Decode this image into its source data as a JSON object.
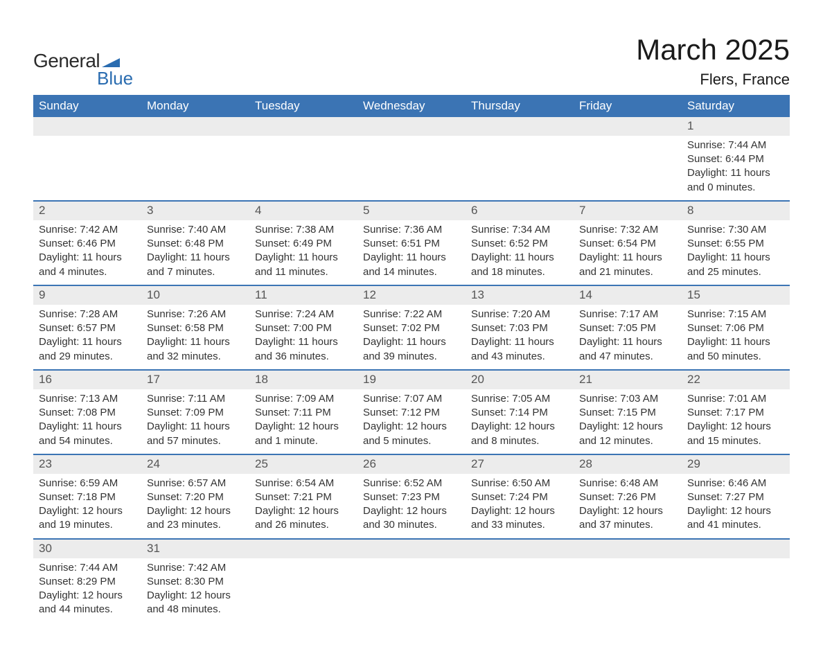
{
  "logo": {
    "text_general": "General",
    "text_blue": "Blue",
    "accent_color": "#2a6cb0",
    "text_color": "#2b2b2b"
  },
  "title": "March 2025",
  "location": "Flers, France",
  "colors": {
    "header_bg": "#3b74b4",
    "header_text": "#ffffff",
    "daynum_bg": "#ececec",
    "row_border": "#3b74b4",
    "body_text": "#333333",
    "daynum_text": "#555555"
  },
  "day_headers": [
    "Sunday",
    "Monday",
    "Tuesday",
    "Wednesday",
    "Thursday",
    "Friday",
    "Saturday"
  ],
  "weeks": [
    {
      "nums": [
        "",
        "",
        "",
        "",
        "",
        "",
        "1"
      ],
      "cells": [
        "",
        "",
        "",
        "",
        "",
        "",
        "Sunrise: 7:44 AM\nSunset: 6:44 PM\nDaylight: 11 hours and 0 minutes."
      ]
    },
    {
      "nums": [
        "2",
        "3",
        "4",
        "5",
        "6",
        "7",
        "8"
      ],
      "cells": [
        "Sunrise: 7:42 AM\nSunset: 6:46 PM\nDaylight: 11 hours and 4 minutes.",
        "Sunrise: 7:40 AM\nSunset: 6:48 PM\nDaylight: 11 hours and 7 minutes.",
        "Sunrise: 7:38 AM\nSunset: 6:49 PM\nDaylight: 11 hours and 11 minutes.",
        "Sunrise: 7:36 AM\nSunset: 6:51 PM\nDaylight: 11 hours and 14 minutes.",
        "Sunrise: 7:34 AM\nSunset: 6:52 PM\nDaylight: 11 hours and 18 minutes.",
        "Sunrise: 7:32 AM\nSunset: 6:54 PM\nDaylight: 11 hours and 21 minutes.",
        "Sunrise: 7:30 AM\nSunset: 6:55 PM\nDaylight: 11 hours and 25 minutes."
      ]
    },
    {
      "nums": [
        "9",
        "10",
        "11",
        "12",
        "13",
        "14",
        "15"
      ],
      "cells": [
        "Sunrise: 7:28 AM\nSunset: 6:57 PM\nDaylight: 11 hours and 29 minutes.",
        "Sunrise: 7:26 AM\nSunset: 6:58 PM\nDaylight: 11 hours and 32 minutes.",
        "Sunrise: 7:24 AM\nSunset: 7:00 PM\nDaylight: 11 hours and 36 minutes.",
        "Sunrise: 7:22 AM\nSunset: 7:02 PM\nDaylight: 11 hours and 39 minutes.",
        "Sunrise: 7:20 AM\nSunset: 7:03 PM\nDaylight: 11 hours and 43 minutes.",
        "Sunrise: 7:17 AM\nSunset: 7:05 PM\nDaylight: 11 hours and 47 minutes.",
        "Sunrise: 7:15 AM\nSunset: 7:06 PM\nDaylight: 11 hours and 50 minutes."
      ]
    },
    {
      "nums": [
        "16",
        "17",
        "18",
        "19",
        "20",
        "21",
        "22"
      ],
      "cells": [
        "Sunrise: 7:13 AM\nSunset: 7:08 PM\nDaylight: 11 hours and 54 minutes.",
        "Sunrise: 7:11 AM\nSunset: 7:09 PM\nDaylight: 11 hours and 57 minutes.",
        "Sunrise: 7:09 AM\nSunset: 7:11 PM\nDaylight: 12 hours and 1 minute.",
        "Sunrise: 7:07 AM\nSunset: 7:12 PM\nDaylight: 12 hours and 5 minutes.",
        "Sunrise: 7:05 AM\nSunset: 7:14 PM\nDaylight: 12 hours and 8 minutes.",
        "Sunrise: 7:03 AM\nSunset: 7:15 PM\nDaylight: 12 hours and 12 minutes.",
        "Sunrise: 7:01 AM\nSunset: 7:17 PM\nDaylight: 12 hours and 15 minutes."
      ]
    },
    {
      "nums": [
        "23",
        "24",
        "25",
        "26",
        "27",
        "28",
        "29"
      ],
      "cells": [
        "Sunrise: 6:59 AM\nSunset: 7:18 PM\nDaylight: 12 hours and 19 minutes.",
        "Sunrise: 6:57 AM\nSunset: 7:20 PM\nDaylight: 12 hours and 23 minutes.",
        "Sunrise: 6:54 AM\nSunset: 7:21 PM\nDaylight: 12 hours and 26 minutes.",
        "Sunrise: 6:52 AM\nSunset: 7:23 PM\nDaylight: 12 hours and 30 minutes.",
        "Sunrise: 6:50 AM\nSunset: 7:24 PM\nDaylight: 12 hours and 33 minutes.",
        "Sunrise: 6:48 AM\nSunset: 7:26 PM\nDaylight: 12 hours and 37 minutes.",
        "Sunrise: 6:46 AM\nSunset: 7:27 PM\nDaylight: 12 hours and 41 minutes."
      ]
    },
    {
      "nums": [
        "30",
        "31",
        "",
        "",
        "",
        "",
        ""
      ],
      "cells": [
        "Sunrise: 7:44 AM\nSunset: 8:29 PM\nDaylight: 12 hours and 44 minutes.",
        "Sunrise: 7:42 AM\nSunset: 8:30 PM\nDaylight: 12 hours and 48 minutes.",
        "",
        "",
        "",
        "",
        ""
      ]
    }
  ]
}
